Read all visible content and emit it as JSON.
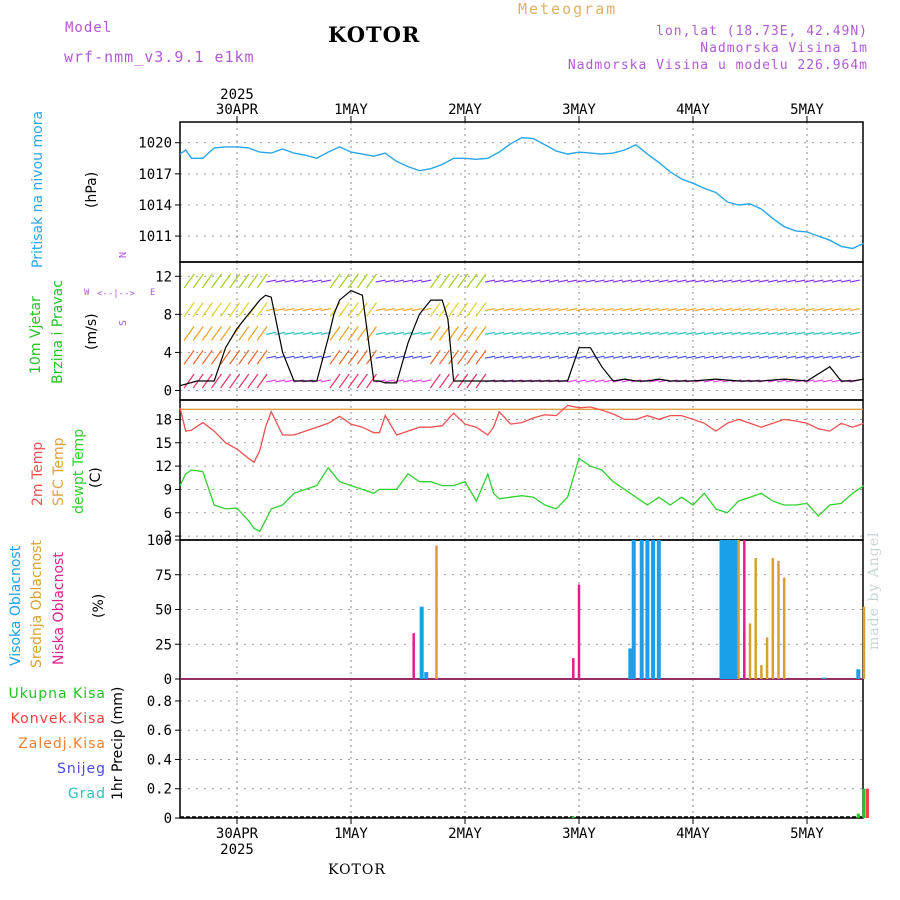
{
  "header": {
    "model_label": "Model",
    "model_version": "wrf-nmm_v3.9.1 e1km",
    "title": "KOTOR",
    "chart_type": "Meteogram",
    "coords": "lon,lat (18.73E, 42.49N)",
    "elevation": "Nadmorska Visina 1m",
    "model_elevation": "Nadmorska Visina u modelu 226.964m"
  },
  "footer": {
    "station": "KOTOR",
    "made_by": "made by Angel"
  },
  "time_axis": {
    "year": "2025",
    "days": [
      "30APR",
      "1MAY",
      "2MAY",
      "3MAY",
      "4MAY",
      "5MAY"
    ]
  },
  "panel_labels": {
    "pressure": {
      "line1": "Pritisak na nivou mora",
      "unit": "(hPa)"
    },
    "wind": {
      "line1": "10m Vjetar",
      "line2": "Brzina i Pravac",
      "unit": "(m/s)",
      "compass_n": "N",
      "compass_w": "W",
      "compass_e": "E",
      "compass_s": "S"
    },
    "temp": {
      "line1": "2m Temp",
      "line2": "SFC Temp",
      "line3": "dewpt Temp",
      "unit": "(C)"
    },
    "cloud": {
      "line1": "Visoka Oblacnost",
      "line2": "Srednja Oblacnost",
      "line3": "Niska Oblacnost",
      "unit": "(%)"
    },
    "precip": {
      "unit": "1hr Precip (mm)",
      "legend": [
        "Ukupna Kisa",
        "Konvek.Kisa",
        "Zaledj.Kisa",
        "Snijeg",
        "Grad"
      ]
    }
  },
  "colors": {
    "pressure": "#29a6ea",
    "temp2m": "#f05050",
    "sfc": "#e0a040",
    "dewpt": "#30d030",
    "cloud_high": "#1aa0e8",
    "cloud_mid": "#d9a030",
    "cloud_low": "#e0208c",
    "precip_total": "#22c322",
    "precip_conv": "#f04040",
    "precip_frz": "#f08030",
    "precip_snow": "#4a4ae0",
    "precip_hail": "#30c0c0",
    "label_pressure": "#29a6ea",
    "label_wind": "#22c322",
    "label_compass": "#b15ad6"
  },
  "chart_data": [
    {
      "type": "line",
      "name": "pressure",
      "ylabel": "Pritisak na nivou mora (hPa)",
      "ylim": [
        1008.5,
        1022
      ],
      "yticks": [
        1011,
        1014,
        1017,
        1020
      ],
      "x_days": [
        -0.5,
        -0.45,
        -0.4,
        -0.3,
        -0.2,
        -0.1,
        0.0,
        0.1,
        0.2,
        0.3,
        0.4,
        0.5,
        0.6,
        0.7,
        0.8,
        0.9,
        1.0,
        1.1,
        1.2,
        1.3,
        1.4,
        1.5,
        1.6,
        1.7,
        1.8,
        1.9,
        2.0,
        2.1,
        2.2,
        2.3,
        2.4,
        2.5,
        2.6,
        2.7,
        2.8,
        2.9,
        3.0,
        3.1,
        3.2,
        3.3,
        3.4,
        3.5,
        3.6,
        3.7,
        3.8,
        3.9,
        4.0,
        4.1,
        4.2,
        4.3,
        4.4,
        4.5,
        4.6,
        4.7,
        4.8,
        4.9,
        5.0,
        5.1,
        5.2,
        5.3,
        5.4,
        5.5
      ],
      "values": [
        1018.9,
        1019.3,
        1018.5,
        1018.5,
        1019.5,
        1019.6,
        1019.6,
        1019.5,
        1019.1,
        1019.0,
        1019.4,
        1019.0,
        1018.8,
        1018.5,
        1019.1,
        1019.6,
        1019.1,
        1018.9,
        1018.7,
        1019.0,
        1018.2,
        1017.7,
        1017.3,
        1017.5,
        1017.9,
        1018.5,
        1018.5,
        1018.4,
        1018.5,
        1019.1,
        1019.9,
        1020.5,
        1020.4,
        1019.8,
        1019.2,
        1018.9,
        1019.1,
        1019.0,
        1018.9,
        1019.0,
        1019.3,
        1019.8,
        1018.9,
        1018.1,
        1017.2,
        1016.5,
        1016.1,
        1015.6,
        1015.2,
        1014.3,
        1014.0,
        1014.1,
        1013.6,
        1012.7,
        1011.9,
        1011.5,
        1011.4,
        1011.0,
        1010.6,
        1010.0,
        1009.8,
        1010.3
      ]
    },
    {
      "type": "line",
      "name": "wind",
      "ylabel": "10m Vjetar Brzina i Pravac (m/s)",
      "ylim": [
        -1,
        13.5
      ],
      "yticks": [
        0,
        4,
        8,
        12
      ],
      "x_days": [
        -0.5,
        -0.35,
        -0.2,
        -0.1,
        0.0,
        0.1,
        0.2,
        0.25,
        0.3,
        0.4,
        0.5,
        0.6,
        0.7,
        0.8,
        0.85,
        0.9,
        1.0,
        1.1,
        1.2,
        1.25,
        1.3,
        1.4,
        1.5,
        1.6,
        1.7,
        1.8,
        1.85,
        1.9,
        2.0,
        2.1,
        2.2,
        2.25,
        2.3,
        2.4,
        2.5,
        2.6,
        2.7,
        2.8,
        2.9,
        3.0,
        3.1,
        3.2,
        3.3,
        3.4,
        3.5,
        3.6,
        3.7,
        3.8,
        3.9,
        4.0,
        4.2,
        4.4,
        4.6,
        4.8,
        5.0,
        5.2,
        5.3,
        5.4,
        5.5
      ],
      "values": [
        0.5,
        1.0,
        1.0,
        4.5,
        6.5,
        8.0,
        9.5,
        10.0,
        9.8,
        4.0,
        1.0,
        1.0,
        1.0,
        5.5,
        8.0,
        9.5,
        10.5,
        10.0,
        1.0,
        1.0,
        0.8,
        0.8,
        5.0,
        8.0,
        9.5,
        9.5,
        7.5,
        1.0,
        1.0,
        1.0,
        1.0,
        1.0,
        1.0,
        1.0,
        1.0,
        1.0,
        1.0,
        1.0,
        1.0,
        4.5,
        4.5,
        2.5,
        1.0,
        1.2,
        1.0,
        1.0,
        1.2,
        1.0,
        1.0,
        1.0,
        1.2,
        1.0,
        1.0,
        1.2,
        1.0,
        2.5,
        1.0,
        1.0,
        1.2
      ]
    },
    {
      "type": "line",
      "name": "temperature",
      "ylabel": "(C)",
      "ylim": [
        2.5,
        20.5
      ],
      "yticks": [
        3,
        6,
        9,
        12,
        15,
        18
      ],
      "x_days": [
        -0.5,
        -0.45,
        -0.4,
        -0.3,
        -0.2,
        -0.1,
        0.0,
        0.1,
        0.15,
        0.2,
        0.25,
        0.3,
        0.4,
        0.5,
        0.6,
        0.7,
        0.8,
        0.9,
        1.0,
        1.1,
        1.2,
        1.25,
        1.3,
        1.4,
        1.5,
        1.6,
        1.7,
        1.8,
        1.9,
        2.0,
        2.1,
        2.2,
        2.25,
        2.3,
        2.4,
        2.5,
        2.6,
        2.7,
        2.8,
        2.9,
        3.0,
        3.1,
        3.2,
        3.3,
        3.4,
        3.5,
        3.6,
        3.7,
        3.8,
        3.9,
        4.0,
        4.1,
        4.2,
        4.3,
        4.4,
        4.5,
        4.6,
        4.7,
        4.8,
        4.9,
        5.0,
        5.1,
        5.2,
        5.3,
        5.4,
        5.5
      ],
      "sfc_temp": 19.3,
      "series": [
        {
          "name": "2m Temp",
          "values": [
            19.5,
            16.5,
            16.6,
            17.6,
            16.5,
            15.0,
            14.2,
            13.0,
            12.5,
            14.0,
            17.0,
            19.0,
            16.0,
            16.0,
            16.5,
            17.0,
            17.5,
            18.4,
            17.4,
            17.0,
            16.3,
            16.3,
            18.5,
            16.0,
            16.5,
            17.0,
            17.0,
            17.2,
            18.8,
            17.4,
            17.0,
            16.0,
            17.0,
            19.0,
            17.4,
            17.6,
            18.2,
            18.6,
            18.5,
            19.8,
            19.5,
            19.6,
            19.2,
            18.7,
            18.0,
            18.0,
            18.5,
            18.0,
            18.5,
            18.5,
            18.0,
            17.5,
            16.5,
            17.5,
            18.0,
            17.5,
            17.0,
            17.5,
            18.0,
            17.8,
            17.5,
            16.8,
            16.5,
            17.5,
            17.0,
            17.5
          ]
        },
        {
          "name": "dewpt Temp",
          "values": [
            9.5,
            11.0,
            11.5,
            11.3,
            7.0,
            6.5,
            6.6,
            5.0,
            4.0,
            3.6,
            5.0,
            6.5,
            7.0,
            8.5,
            9.0,
            9.5,
            11.8,
            10.0,
            9.5,
            9.0,
            8.5,
            9.0,
            9.0,
            9.0,
            11.0,
            10.0,
            10.0,
            9.5,
            9.5,
            10.0,
            7.5,
            11.0,
            8.5,
            7.8,
            8.0,
            8.2,
            8.0,
            7.0,
            6.5,
            8.0,
            13.0,
            12.0,
            11.5,
            10.0,
            9.0,
            8.0,
            7.0,
            8.0,
            7.0,
            8.0,
            7.0,
            8.5,
            6.5,
            6.0,
            7.5,
            8.0,
            8.5,
            7.5,
            7.0,
            7.0,
            7.2,
            5.6,
            7.0,
            7.2,
            8.5,
            9.5
          ]
        }
      ]
    },
    {
      "type": "bar",
      "name": "cloud",
      "ylabel": "(%)",
      "ylim": [
        0,
        100
      ],
      "yticks": [
        0,
        25,
        50,
        75,
        100
      ],
      "series": [
        {
          "name": "Visoka Oblacnost",
          "x_days": [
            1.62,
            1.66,
            3.45,
            3.48,
            3.55,
            3.6,
            3.65,
            3.7,
            4.25,
            4.28,
            4.3,
            4.33,
            4.35,
            4.38,
            5.15,
            5.45
          ],
          "values": [
            52,
            5,
            22,
            100,
            100,
            100,
            100,
            100,
            100,
            100,
            100,
            100,
            100,
            100,
            1,
            7
          ]
        },
        {
          "name": "Srednja Oblacnost",
          "x_days": [
            1.75,
            4.4,
            4.45,
            4.5,
            4.55,
            4.6,
            4.65,
            4.7,
            4.75,
            4.8,
            5.5
          ],
          "values": [
            96,
            100,
            35,
            40,
            87,
            10,
            30,
            87,
            85,
            73,
            52
          ]
        },
        {
          "name": "Niska Oblacnost",
          "x_days": [
            1.55,
            2.95,
            3.0,
            4.45
          ],
          "values": [
            33,
            15,
            68,
            100
          ]
        }
      ]
    },
    {
      "type": "bar",
      "name": "precip",
      "ylabel": "1hr Precip (mm)",
      "ylim": [
        0,
        0.95
      ],
      "yticks": [
        0,
        0.2,
        0.4,
        0.6,
        0.8
      ],
      "series": [
        {
          "name": "Ukupna Kisa",
          "x_days": [
            2.95,
            5.45,
            5.5
          ],
          "values": [
            0.01,
            0.03,
            0.2
          ]
        },
        {
          "name": "Konvek.Kisa",
          "x_days": [
            5.53
          ],
          "values": [
            0.2
          ]
        },
        {
          "name": "Zaledj.Kisa",
          "x_days": [],
          "values": []
        },
        {
          "name": "Snijeg",
          "x_days": [],
          "values": []
        },
        {
          "name": "Grad",
          "x_days": [],
          "values": []
        }
      ]
    }
  ]
}
